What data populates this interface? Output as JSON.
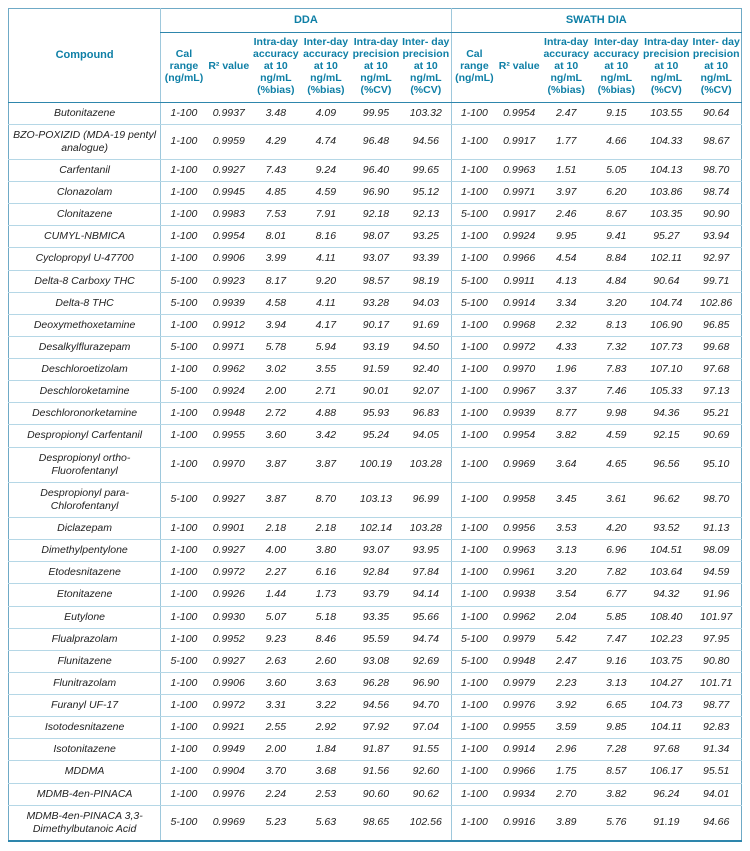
{
  "table": {
    "compound_header": "Compound",
    "groups": [
      {
        "label": "DDA"
      },
      {
        "label": "SWATH DIA"
      }
    ],
    "sub_headers": [
      "Cal range (ng/mL)",
      "R² value",
      "Intra-day accuracy at 10 ng/mL (%bias)",
      "Inter-day accuracy at 10 ng/mL (%bias)",
      "Intra-day precision at 10 ng/mL (%CV)",
      "Inter- day precision at 10 ng/mL (%CV)"
    ],
    "rows": [
      {
        "compound": "Butonitazene",
        "dda": [
          "1-100",
          "0.9937",
          "3.48",
          "4.09",
          "99.95",
          "103.32"
        ],
        "swath": [
          "1-100",
          "0.9954",
          "2.47",
          "9.15",
          "103.55",
          "90.64"
        ]
      },
      {
        "compound": "BZO-POXIZID (MDA-19 pentyl analogue)",
        "dda": [
          "1-100",
          "0.9959",
          "4.29",
          "4.74",
          "96.48",
          "94.56"
        ],
        "swath": [
          "1-100",
          "0.9917",
          "1.77",
          "4.66",
          "104.33",
          "98.67"
        ]
      },
      {
        "compound": "Carfentanil",
        "dda": [
          "1-100",
          "0.9927",
          "7.43",
          "9.24",
          "96.40",
          "99.65"
        ],
        "swath": [
          "1-100",
          "0.9963",
          "1.51",
          "5.05",
          "104.13",
          "98.70"
        ]
      },
      {
        "compound": "Clonazolam",
        "dda": [
          "1-100",
          "0.9945",
          "4.85",
          "4.59",
          "96.90",
          "95.12"
        ],
        "swath": [
          "1-100",
          "0.9971",
          "3.97",
          "6.20",
          "103.86",
          "98.74"
        ]
      },
      {
        "compound": "Clonitazene",
        "dda": [
          "1-100",
          "0.9983",
          "7.53",
          "7.91",
          "92.18",
          "92.13"
        ],
        "swath": [
          "5-100",
          "0.9917",
          "2.46",
          "8.67",
          "103.35",
          "90.90"
        ]
      },
      {
        "compound": "CUMYL-NBMICA",
        "dda": [
          "1-100",
          "0.9954",
          "8.01",
          "8.16",
          "98.07",
          "93.25"
        ],
        "swath": [
          "1-100",
          "0.9924",
          "9.95",
          "9.41",
          "95.27",
          "93.94"
        ]
      },
      {
        "compound": "Cyclopropyl U-47700",
        "dda": [
          "1-100",
          "0.9906",
          "3.99",
          "4.11",
          "93.07",
          "93.39"
        ],
        "swath": [
          "1-100",
          "0.9966",
          "4.54",
          "8.84",
          "102.11",
          "92.97"
        ]
      },
      {
        "compound": "Delta-8 Carboxy THC",
        "dda": [
          "5-100",
          "0.9923",
          "8.17",
          "9.20",
          "98.57",
          "98.19"
        ],
        "swath": [
          "5-100",
          "0.9911",
          "4.13",
          "4.84",
          "90.64",
          "99.71"
        ]
      },
      {
        "compound": "Delta-8 THC",
        "dda": [
          "5-100",
          "0.9939",
          "4.58",
          "4.11",
          "93.28",
          "94.03"
        ],
        "swath": [
          "5-100",
          "0.9914",
          "3.34",
          "3.20",
          "104.74",
          "102.86"
        ]
      },
      {
        "compound": "Deoxymethoxetamine",
        "dda": [
          "1-100",
          "0.9912",
          "3.94",
          "4.17",
          "90.17",
          "91.69"
        ],
        "swath": [
          "1-100",
          "0.9968",
          "2.32",
          "8.13",
          "106.90",
          "96.85"
        ]
      },
      {
        "compound": "Desalkylflurazepam",
        "dda": [
          "5-100",
          "0.9971",
          "5.78",
          "5.94",
          "93.19",
          "94.50"
        ],
        "swath": [
          "1-100",
          "0.9972",
          "4.33",
          "7.32",
          "107.73",
          "99.68"
        ]
      },
      {
        "compound": "Deschloroetizolam",
        "dda": [
          "1-100",
          "0.9962",
          "3.02",
          "3.55",
          "91.59",
          "92.40"
        ],
        "swath": [
          "1-100",
          "0.9970",
          "1.96",
          "7.83",
          "107.10",
          "97.68"
        ]
      },
      {
        "compound": "Deschloroketamine",
        "dda": [
          "5-100",
          "0.9924",
          "2.00",
          "2.71",
          "90.01",
          "92.07"
        ],
        "swath": [
          "1-100",
          "0.9967",
          "3.37",
          "7.46",
          "105.33",
          "97.13"
        ]
      },
      {
        "compound": "Deschloronorketamine",
        "dda": [
          "1-100",
          "0.9948",
          "2.72",
          "4.88",
          "95.93",
          "96.83"
        ],
        "swath": [
          "1-100",
          "0.9939",
          "8.77",
          "9.98",
          "94.36",
          "95.21"
        ]
      },
      {
        "compound": "Despropionyl Carfentanil",
        "dda": [
          "1-100",
          "0.9955",
          "3.60",
          "3.42",
          "95.24",
          "94.05"
        ],
        "swath": [
          "1-100",
          "0.9954",
          "3.82",
          "4.59",
          "92.15",
          "90.69"
        ]
      },
      {
        "compound": "Despropionyl ortho-Fluorofentanyl",
        "dda": [
          "1-100",
          "0.9970",
          "3.87",
          "3.87",
          "100.19",
          "103.28"
        ],
        "swath": [
          "1-100",
          "0.9969",
          "3.64",
          "4.65",
          "96.56",
          "95.10"
        ]
      },
      {
        "compound": "Despropionyl para-Chlorofentanyl",
        "dda": [
          "5-100",
          "0.9927",
          "3.87",
          "8.70",
          "103.13",
          "96.99"
        ],
        "swath": [
          "1-100",
          "0.9958",
          "3.45",
          "3.61",
          "96.62",
          "98.70"
        ]
      },
      {
        "compound": "Diclazepam",
        "dda": [
          "1-100",
          "0.9901",
          "2.18",
          "2.18",
          "102.14",
          "103.28"
        ],
        "swath": [
          "1-100",
          "0.9956",
          "3.53",
          "4.20",
          "93.52",
          "91.13"
        ]
      },
      {
        "compound": "Dimethylpentylone",
        "dda": [
          "1-100",
          "0.9927",
          "4.00",
          "3.80",
          "93.07",
          "93.95"
        ],
        "swath": [
          "1-100",
          "0.9963",
          "3.13",
          "6.96",
          "104.51",
          "98.09"
        ]
      },
      {
        "compound": "Etodesnitazene",
        "dda": [
          "1-100",
          "0.9972",
          "2.27",
          "6.16",
          "92.84",
          "97.84"
        ],
        "swath": [
          "1-100",
          "0.9961",
          "3.20",
          "7.82",
          "103.64",
          "94.59"
        ]
      },
      {
        "compound": "Etonitazene",
        "dda": [
          "1-100",
          "0.9926",
          "1.44",
          "1.73",
          "93.79",
          "94.14"
        ],
        "swath": [
          "1-100",
          "0.9938",
          "3.54",
          "6.77",
          "94.32",
          "91.96"
        ]
      },
      {
        "compound": "Eutylone",
        "dda": [
          "1-100",
          "0.9930",
          "5.07",
          "5.18",
          "93.35",
          "95.66"
        ],
        "swath": [
          "1-100",
          "0.9962",
          "2.04",
          "5.85",
          "108.40",
          "101.97"
        ]
      },
      {
        "compound": "Flualprazolam",
        "dda": [
          "1-100",
          "0.9952",
          "9.23",
          "8.46",
          "95.59",
          "94.74"
        ],
        "swath": [
          "5-100",
          "0.9979",
          "5.42",
          "7.47",
          "102.23",
          "97.95"
        ]
      },
      {
        "compound": "Flunitazene",
        "dda": [
          "5-100",
          "0.9927",
          "2.63",
          "2.60",
          "93.08",
          "92.69"
        ],
        "swath": [
          "5-100",
          "0.9948",
          "2.47",
          "9.16",
          "103.75",
          "90.80"
        ]
      },
      {
        "compound": "Flunitrazolam",
        "dda": [
          "1-100",
          "0.9906",
          "3.60",
          "3.63",
          "96.28",
          "96.90"
        ],
        "swath": [
          "1-100",
          "0.9979",
          "2.23",
          "3.13",
          "104.27",
          "101.71"
        ]
      },
      {
        "compound": "Furanyl UF-17",
        "dda": [
          "1-100",
          "0.9972",
          "3.31",
          "3.22",
          "94.56",
          "94.70"
        ],
        "swath": [
          "1-100",
          "0.9976",
          "3.92",
          "6.65",
          "104.73",
          "98.77"
        ]
      },
      {
        "compound": "Isotodesnitazene",
        "dda": [
          "1-100",
          "0.9921",
          "2.55",
          "2.92",
          "97.92",
          "97.04"
        ],
        "swath": [
          "1-100",
          "0.9955",
          "3.59",
          "9.85",
          "104.11",
          "92.83"
        ]
      },
      {
        "compound": "Isotonitazene",
        "dda": [
          "1-100",
          "0.9949",
          "2.00",
          "1.84",
          "91.87",
          "91.55"
        ],
        "swath": [
          "1-100",
          "0.9914",
          "2.96",
          "7.28",
          "97.68",
          "91.34"
        ]
      },
      {
        "compound": "MDDMA",
        "dda": [
          "1-100",
          "0.9904",
          "3.70",
          "3.68",
          "91.56",
          "92.60"
        ],
        "swath": [
          "1-100",
          "0.9966",
          "1.75",
          "8.57",
          "106.17",
          "95.51"
        ]
      },
      {
        "compound": "MDMB-4en-PINACA",
        "dda": [
          "1-100",
          "0.9976",
          "2.24",
          "2.53",
          "90.60",
          "90.62"
        ],
        "swath": [
          "1-100",
          "0.9934",
          "2.70",
          "3.82",
          "96.24",
          "94.01"
        ]
      },
      {
        "compound": "MDMB-4en-PINACA 3,3-Dimethylbutanoic Acid",
        "dda": [
          "5-100",
          "0.9969",
          "5.23",
          "5.63",
          "98.65",
          "102.56"
        ],
        "swath": [
          "1-100",
          "0.9916",
          "3.89",
          "5.76",
          "91.19",
          "94.66"
        ]
      }
    ]
  },
  "colors": {
    "header_text": "#0e7fa6",
    "body_text": "#222222",
    "border_strong": "#2e86ac",
    "border_light": "#b5d7e6"
  }
}
